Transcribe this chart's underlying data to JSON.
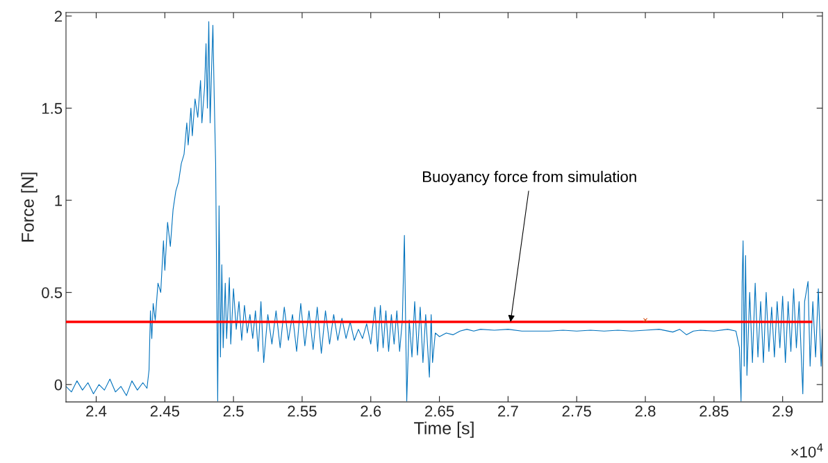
{
  "chart_data": {
    "type": "line",
    "xlabel": "Time [s]",
    "ylabel": "Force [N]",
    "xlim": [
      2.378,
      2.929
    ],
    "ylim": [
      -0.094,
      2.019
    ],
    "xticks": [
      2.4,
      2.45,
      2.5,
      2.55,
      2.6,
      2.65,
      2.7,
      2.75,
      2.8,
      2.85,
      2.9
    ],
    "yticks": [
      0,
      0.5,
      1,
      1.5,
      2
    ],
    "grid": false,
    "marker": "none",
    "line_style": "solid",
    "annotations": [
      {
        "text": "Buoyancy force from simulation",
        "x": 2.7018,
        "y": 0.34
      },
      "×10$^{4}$"
    ],
    "series": [
      {
        "color": "#0072bd",
        "x": [
          2.378,
          2.382,
          2.386,
          2.39,
          2.394,
          2.398,
          2.402,
          2.406,
          2.41,
          2.414,
          2.418,
          2.422,
          2.426,
          2.43,
          2.434,
          2.437,
          2.4385,
          2.4395,
          2.4405,
          2.4415,
          2.443,
          2.445,
          2.447,
          2.449,
          2.45,
          2.452,
          2.454,
          2.456,
          2.458,
          2.46,
          2.462,
          2.464,
          2.466,
          2.467,
          2.469,
          2.47,
          2.472,
          2.474,
          2.476,
          2.477,
          2.479,
          2.48,
          2.481,
          2.482,
          2.483,
          2.484,
          2.485,
          2.486,
          2.487,
          2.4885,
          2.4895,
          2.4905,
          2.4915,
          2.4925,
          2.494,
          2.495,
          2.497,
          2.498,
          2.5,
          2.502,
          2.504,
          2.506,
          2.508,
          2.51,
          2.512,
          2.514,
          2.516,
          2.518,
          2.52,
          2.522,
          2.525,
          2.528,
          2.531,
          2.534,
          2.537,
          2.54,
          2.543,
          2.546,
          2.549,
          2.552,
          2.555,
          2.558,
          2.561,
          2.564,
          2.567,
          2.57,
          2.573,
          2.576,
          2.579,
          2.582,
          2.585,
          2.588,
          2.591,
          2.594,
          2.597,
          2.6,
          2.603,
          2.605,
          2.607,
          2.609,
          2.611,
          2.613,
          2.615,
          2.617,
          2.619,
          2.621,
          2.623,
          2.6245,
          2.6262,
          2.628,
          2.63,
          2.632,
          2.634,
          2.636,
          2.638,
          2.64,
          2.6427,
          2.644,
          2.645,
          2.647,
          2.65,
          2.655,
          2.66,
          2.665,
          2.67,
          2.675,
          2.68,
          2.69,
          2.7,
          2.71,
          2.72,
          2.73,
          2.74,
          2.75,
          2.76,
          2.77,
          2.78,
          2.79,
          2.8,
          2.81,
          2.82,
          2.825,
          2.83,
          2.835,
          2.84,
          2.85,
          2.86,
          2.866,
          2.8685,
          2.8697,
          2.8705,
          2.8712,
          2.872,
          2.873,
          2.874,
          2.876,
          2.878,
          2.88,
          2.882,
          2.884,
          2.886,
          2.888,
          2.89,
          2.892,
          2.894,
          2.896,
          2.898,
          2.9,
          2.902,
          2.904,
          2.906,
          2.908,
          2.91,
          2.912,
          2.9147,
          2.916,
          2.9185,
          2.92,
          2.922,
          2.924,
          2.926,
          2.928,
          2.929
        ],
        "values": [
          -0.01,
          -0.04,
          0.02,
          -0.03,
          0.01,
          -0.05,
          0.0,
          -0.03,
          0.03,
          -0.04,
          -0.01,
          -0.06,
          0.02,
          -0.03,
          0.01,
          -0.02,
          0.08,
          0.4,
          0.25,
          0.44,
          0.35,
          0.55,
          0.5,
          0.78,
          0.62,
          0.88,
          0.75,
          0.95,
          1.05,
          1.1,
          1.2,
          1.25,
          1.42,
          1.3,
          1.5,
          1.35,
          1.55,
          1.45,
          1.65,
          1.42,
          1.62,
          1.85,
          1.5,
          1.97,
          1.42,
          1.7,
          1.95,
          1.55,
          1.2,
          -0.09,
          0.97,
          0.15,
          0.65,
          0.2,
          0.55,
          0.25,
          0.58,
          0.22,
          0.52,
          0.3,
          0.45,
          0.24,
          0.43,
          0.28,
          0.38,
          0.25,
          0.4,
          0.18,
          0.45,
          0.12,
          0.38,
          0.22,
          0.4,
          0.2,
          0.42,
          0.24,
          0.38,
          0.18,
          0.44,
          0.21,
          0.4,
          0.19,
          0.42,
          0.17,
          0.4,
          0.22,
          0.38,
          0.24,
          0.36,
          0.25,
          0.34,
          0.24,
          0.3,
          0.25,
          0.33,
          0.22,
          0.42,
          0.18,
          0.43,
          0.2,
          0.4,
          0.18,
          0.38,
          0.22,
          0.4,
          0.18,
          0.35,
          0.81,
          -0.09,
          0.35,
          0.15,
          0.45,
          0.16,
          0.42,
          0.12,
          0.38,
          0.04,
          0.38,
          0.12,
          0.28,
          0.26,
          0.28,
          0.27,
          0.29,
          0.3,
          0.29,
          0.3,
          0.295,
          0.3,
          0.29,
          0.29,
          0.29,
          0.295,
          0.29,
          0.295,
          0.29,
          0.295,
          0.29,
          0.295,
          0.3,
          0.285,
          0.3,
          0.27,
          0.29,
          0.295,
          0.29,
          0.3,
          0.29,
          0.2,
          -0.09,
          0.55,
          0.78,
          0.1,
          0.7,
          0.05,
          0.5,
          0.12,
          0.55,
          0.15,
          0.45,
          0.12,
          0.5,
          0.18,
          0.42,
          0.15,
          0.45,
          0.2,
          0.48,
          0.12,
          0.45,
          0.18,
          0.52,
          0.2,
          0.45,
          -0.05,
          0.45,
          0.56,
          0.1,
          0.45,
          0.15,
          0.52,
          0.1,
          0.3
        ]
      },
      {
        "color": "#ff0000",
        "x": [
          2.378,
          2.9207
        ],
        "values": [
          0.34,
          0.34
        ]
      },
      {
        "type": "scatter",
        "color": "#d95319",
        "marker": "cross",
        "x": [
          2.8
        ],
        "values": [
          0.35
        ]
      }
    ]
  }
}
